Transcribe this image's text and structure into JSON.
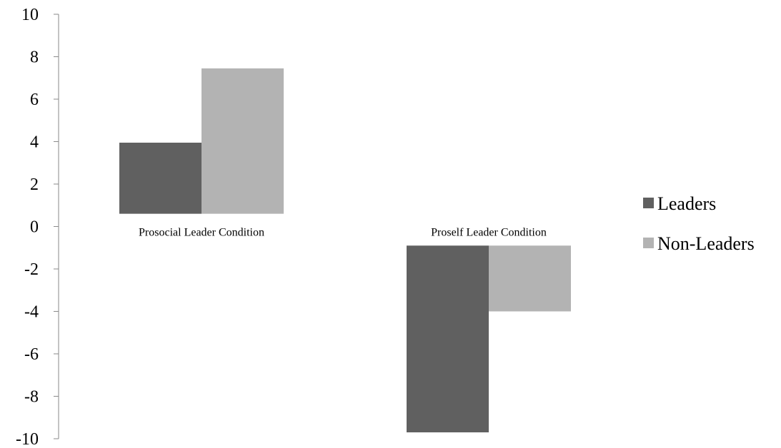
{
  "chart_data": {
    "type": "bar",
    "title": "",
    "xlabel": "",
    "ylabel": "",
    "ylim": [
      -10,
      10
    ],
    "yticks": [
      10,
      8,
      6,
      4,
      2,
      0,
      -2,
      -4,
      -6,
      -8,
      -10
    ],
    "categories": [
      "Prosocial Leader Condition",
      "Proself Leader Condition"
    ],
    "series": [
      {
        "name": "Leaders",
        "color": "#606060",
        "values": [
          3.35,
          -8.8
        ]
      },
      {
        "name": "Non-Leaders",
        "color": "#b3b3b3",
        "values": [
          6.85,
          -3.1
        ]
      }
    ],
    "grid": false,
    "legend": "right"
  }
}
